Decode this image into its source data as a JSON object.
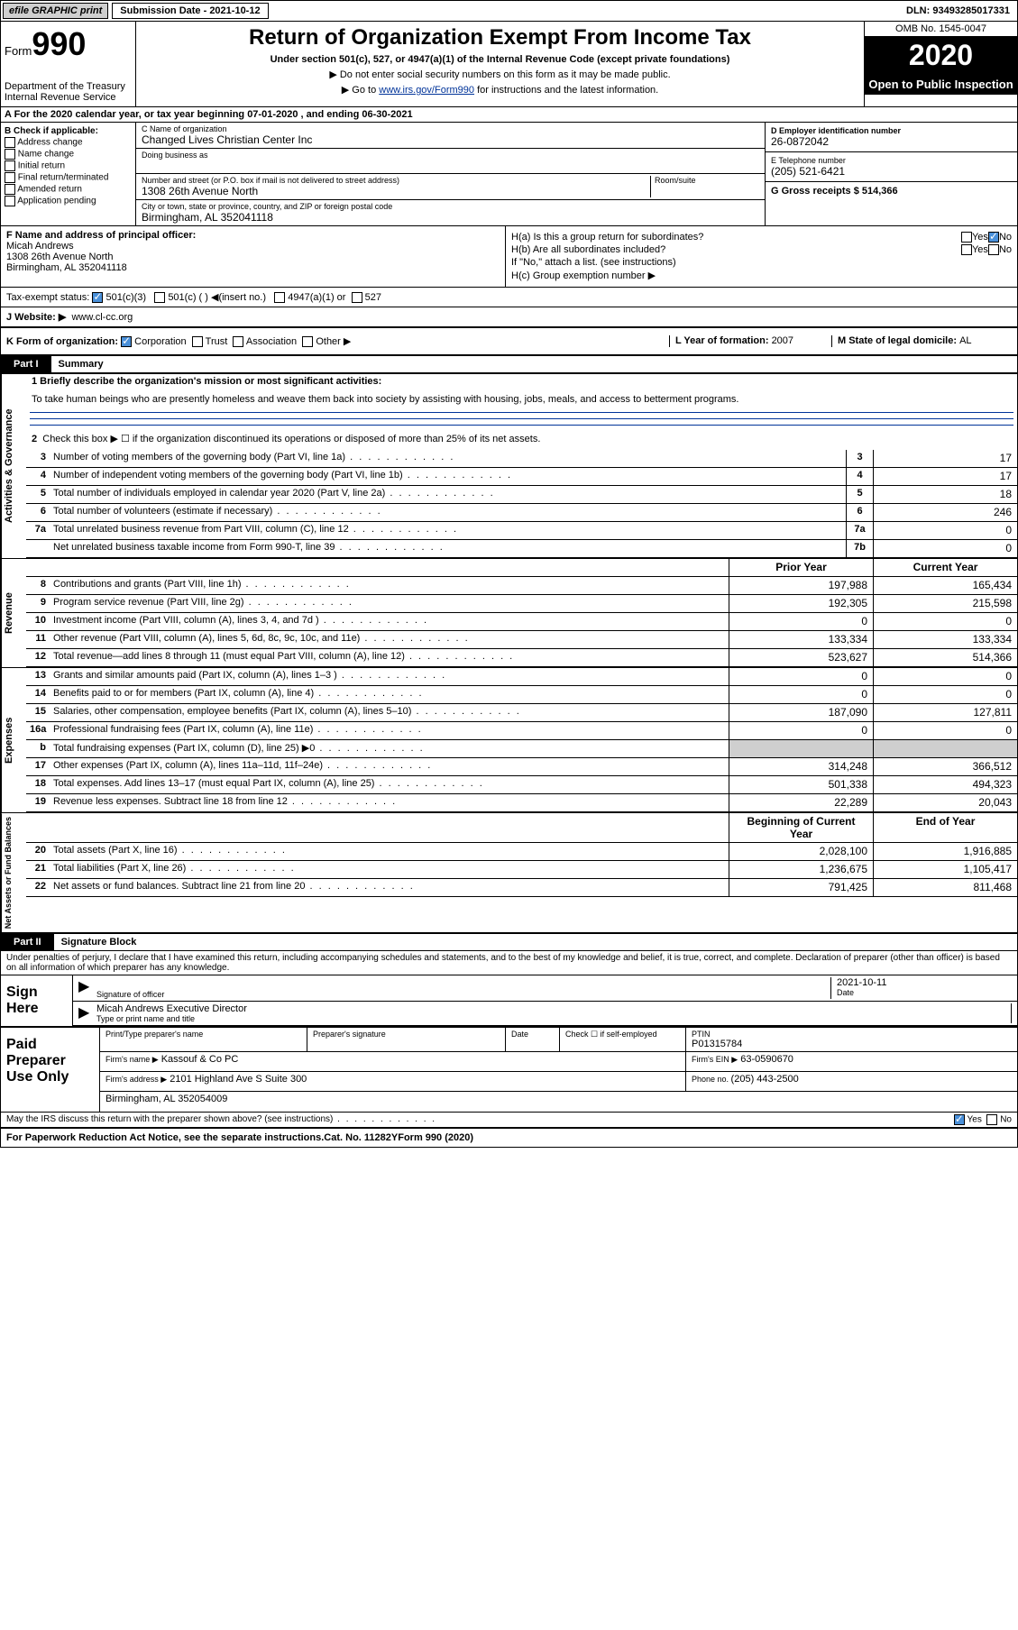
{
  "topbar": {
    "efile": "efile GRAPHIC print",
    "submission": "Submission Date - 2021-10-12",
    "dln": "DLN: 93493285017331"
  },
  "header": {
    "form_prefix": "Form",
    "form_num": "990",
    "dept": "Department of the Treasury\nInternal Revenue Service",
    "title": "Return of Organization Exempt From Income Tax",
    "subtitle": "Under section 501(c), 527, or 4947(a)(1) of the Internal Revenue Code (except private foundations)",
    "note1": "▶ Do not enter social security numbers on this form as it may be made public.",
    "note2_prefix": "▶ Go to ",
    "note2_link": "www.irs.gov/Form990",
    "note2_suffix": " for instructions and the latest information.",
    "omb": "OMB No. 1545-0047",
    "year": "2020",
    "open": "Open to Public Inspection"
  },
  "line_a": "A For the 2020 calendar year, or tax year beginning 07-01-2020    , and ending 06-30-2021",
  "section_b": {
    "header": "B Check if applicable:",
    "opts": [
      "Address change",
      "Name change",
      "Initial return",
      "Final return/terminated",
      "Amended return",
      "Application pending"
    ]
  },
  "section_c": {
    "name_label": "C Name of organization",
    "name": "Changed Lives Christian Center Inc",
    "dba_label": "Doing business as",
    "dba": "",
    "addr_label": "Number and street (or P.O. box if mail is not delivered to street address)",
    "addr": "1308 26th Avenue North",
    "room_label": "Room/suite",
    "city_label": "City or town, state or province, country, and ZIP or foreign postal code",
    "city": "Birmingham, AL  352041118"
  },
  "section_d": {
    "label": "D Employer identification number",
    "val": "26-0872042"
  },
  "section_e": {
    "label": "E Telephone number",
    "val": "(205) 521-6421"
  },
  "section_g": {
    "label": "G Gross receipts $ ",
    "val": "514,366"
  },
  "section_f": {
    "label": "F  Name and address of principal officer:",
    "name": "Micah Andrews",
    "addr1": "1308 26th Avenue North",
    "addr2": "Birmingham, AL  352041118"
  },
  "section_h": {
    "ha": "H(a)  Is this a group return for subordinates?",
    "hb": "H(b)  Are all subordinates included?",
    "hb_note": "If \"No,\" attach a list. (see instructions)",
    "hc": "H(c)  Group exemption number ▶",
    "yes": "Yes",
    "no": "No"
  },
  "tax_status": {
    "label": "Tax-exempt status:",
    "opts": [
      "501(c)(3)",
      "501(c) (   ) ◀(insert no.)",
      "4947(a)(1) or",
      "527"
    ]
  },
  "website": {
    "label": "J    Website: ▶",
    "val": "www.cl-cc.org"
  },
  "line_k": {
    "label": "K Form of organization:",
    "opts": [
      "Corporation",
      "Trust",
      "Association",
      "Other ▶"
    ]
  },
  "line_l": {
    "label": "L Year of formation: ",
    "val": "2007"
  },
  "line_m": {
    "label": "M State of legal domicile: ",
    "val": "AL"
  },
  "part1": {
    "hdr": "Part I",
    "title": "Summary",
    "mission_label": "1   Briefly describe the organization's mission or most significant activities:",
    "mission": "To take human beings who are presently homeless and weave them back into society by assisting with housing, jobs, meals, and access to betterment programs.",
    "line2": "Check this box ▶ ☐  if the organization discontinued its operations or disposed of more than 25% of its net assets.",
    "gov_label": "Activities & Governance",
    "rev_label": "Revenue",
    "exp_label": "Expenses",
    "net_label": "Net Assets or Fund Balances",
    "rows_gov": [
      {
        "n": "3",
        "d": "Number of voting members of the governing body (Part VI, line 1a)",
        "b": "3",
        "v": "17"
      },
      {
        "n": "4",
        "d": "Number of independent voting members of the governing body (Part VI, line 1b)",
        "b": "4",
        "v": "17"
      },
      {
        "n": "5",
        "d": "Total number of individuals employed in calendar year 2020 (Part V, line 2a)",
        "b": "5",
        "v": "18"
      },
      {
        "n": "6",
        "d": "Total number of volunteers (estimate if necessary)",
        "b": "6",
        "v": "246"
      },
      {
        "n": "7a",
        "d": "Total unrelated business revenue from Part VIII, column (C), line 12",
        "b": "7a",
        "v": "0"
      },
      {
        "n": "",
        "d": "Net unrelated business taxable income from Form 990-T, line 39",
        "b": "7b",
        "v": "0"
      }
    ],
    "col_prior": "Prior Year",
    "col_curr": "Current Year",
    "rows_rev": [
      {
        "n": "8",
        "d": "Contributions and grants (Part VIII, line 1h)",
        "p": "197,988",
        "c": "165,434"
      },
      {
        "n": "9",
        "d": "Program service revenue (Part VIII, line 2g)",
        "p": "192,305",
        "c": "215,598"
      },
      {
        "n": "10",
        "d": "Investment income (Part VIII, column (A), lines 3, 4, and 7d )",
        "p": "0",
        "c": "0"
      },
      {
        "n": "11",
        "d": "Other revenue (Part VIII, column (A), lines 5, 6d, 8c, 9c, 10c, and 11e)",
        "p": "133,334",
        "c": "133,334"
      },
      {
        "n": "12",
        "d": "Total revenue—add lines 8 through 11 (must equal Part VIII, column (A), line 12)",
        "p": "523,627",
        "c": "514,366"
      }
    ],
    "rows_exp": [
      {
        "n": "13",
        "d": "Grants and similar amounts paid (Part IX, column (A), lines 1–3 )",
        "p": "0",
        "c": "0"
      },
      {
        "n": "14",
        "d": "Benefits paid to or for members (Part IX, column (A), line 4)",
        "p": "0",
        "c": "0"
      },
      {
        "n": "15",
        "d": "Salaries, other compensation, employee benefits (Part IX, column (A), lines 5–10)",
        "p": "187,090",
        "c": "127,811"
      },
      {
        "n": "16a",
        "d": "Professional fundraising fees (Part IX, column (A), line 11e)",
        "p": "0",
        "c": "0"
      },
      {
        "n": "b",
        "d": "Total fundraising expenses (Part IX, column (D), line 25) ▶0",
        "p": "shade",
        "c": "shade"
      },
      {
        "n": "17",
        "d": "Other expenses (Part IX, column (A), lines 11a–11d, 11f–24e)",
        "p": "314,248",
        "c": "366,512"
      },
      {
        "n": "18",
        "d": "Total expenses. Add lines 13–17 (must equal Part IX, column (A), line 25)",
        "p": "501,338",
        "c": "494,323"
      },
      {
        "n": "19",
        "d": "Revenue less expenses. Subtract line 18 from line 12",
        "p": "22,289",
        "c": "20,043"
      }
    ],
    "col_beg": "Beginning of Current Year",
    "col_end": "End of Year",
    "rows_net": [
      {
        "n": "20",
        "d": "Total assets (Part X, line 16)",
        "p": "2,028,100",
        "c": "1,916,885"
      },
      {
        "n": "21",
        "d": "Total liabilities (Part X, line 26)",
        "p": "1,236,675",
        "c": "1,105,417"
      },
      {
        "n": "22",
        "d": "Net assets or fund balances. Subtract line 21 from line 20",
        "p": "791,425",
        "c": "811,468"
      }
    ]
  },
  "part2": {
    "hdr": "Part II",
    "title": "Signature Block",
    "decl": "Under penalties of perjury, I declare that I have examined this return, including accompanying schedules and statements, and to the best of my knowledge and belief, it is true, correct, and complete. Declaration of preparer (other than officer) is based on all information of which preparer has any knowledge.",
    "sign_here": "Sign Here",
    "sig_officer": "Signature of officer",
    "date_label": "Date",
    "date": "2021-10-11",
    "name_title": "Micah Andrews  Executive Director",
    "name_title_label": "Type or print name and title",
    "paid": "Paid Preparer Use Only",
    "prep_name_label": "Print/Type preparer's name",
    "prep_sig_label": "Preparer's signature",
    "check_self": "Check ☐ if self-employed",
    "ptin_label": "PTIN",
    "ptin": "P01315784",
    "firm_name_label": "Firm's name    ▶",
    "firm_name": "Kassouf & Co PC",
    "firm_ein_label": "Firm's EIN ▶",
    "firm_ein": "63-0590670",
    "firm_addr_label": "Firm's address ▶",
    "firm_addr1": "2101 Highland Ave S Suite 300",
    "firm_addr2": "Birmingham, AL  352054009",
    "phone_label": "Phone no. ",
    "phone": "(205) 443-2500",
    "discuss": "May the IRS discuss this return with the preparer shown above? (see instructions)"
  },
  "footer": {
    "paperwork": "For Paperwork Reduction Act Notice, see the separate instructions.",
    "cat": "Cat. No. 11282Y",
    "form": "Form 990 (2020)"
  }
}
